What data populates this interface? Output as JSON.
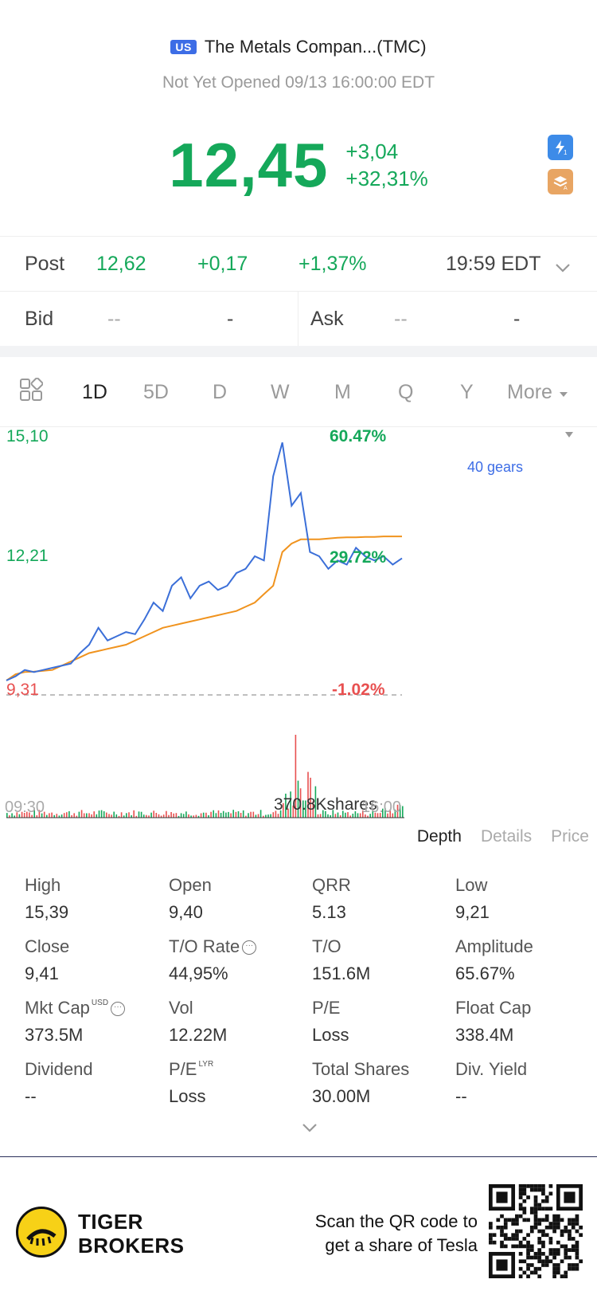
{
  "header": {
    "flag": "US",
    "title": "The Metals Compan...(TMC)",
    "status": "Not Yet Opened 09/13 16:00:00 EDT",
    "price": "12,45",
    "change": "+3,04",
    "change_pct": "+32,31%",
    "colors": {
      "up": "#15a85a",
      "down": "#e85050",
      "accent": "#3d6de6"
    },
    "icons": [
      "lightning-badge-icon",
      "stack-badge-icon"
    ]
  },
  "post": {
    "label": "Post",
    "price": "12,62",
    "change": "+0,17",
    "change_pct": "+1,37%",
    "time": "19:59 EDT"
  },
  "bid_ask": {
    "bid_label": "Bid",
    "bid_price": "--",
    "bid_size": "-",
    "ask_label": "Ask",
    "ask_price": "--",
    "ask_size": "-"
  },
  "tabs": {
    "items": [
      "1D",
      "5D",
      "D",
      "W",
      "M",
      "Q",
      "Y"
    ],
    "more": "More",
    "active": "1D"
  },
  "chart": {
    "y_high": "15,10",
    "y_mid": "12,21",
    "y_low": "9,31",
    "pct_high": "60.47%",
    "pct_mid": "29.72%",
    "pct_low": "-1.02%",
    "indicator": "40 gears",
    "volume_label": "370.8Kshares",
    "x_start": "09:30",
    "x_end": "16:00"
  },
  "chart_data": {
    "type": "line",
    "title": "",
    "xlabel": "",
    "ylabel": "",
    "xlim": [
      "09:30",
      "16:00"
    ],
    "ylim": [
      9.31,
      15.1
    ],
    "reference_line": 9.41,
    "series": [
      {
        "color": "#3b6fd8",
        "values": [
          9.35,
          9.45,
          9.6,
          9.55,
          9.6,
          9.65,
          9.7,
          9.75,
          10.0,
          10.2,
          10.6,
          10.3,
          10.4,
          10.5,
          10.45,
          10.8,
          11.2,
          11.0,
          11.6,
          11.8,
          11.3,
          11.6,
          11.7,
          11.5,
          11.6,
          11.9,
          12.0,
          12.3,
          12.2,
          14.2,
          15.0,
          13.5,
          13.8,
          12.4,
          12.3,
          12.0,
          12.2,
          12.1,
          12.5,
          12.3,
          12.2,
          12.3,
          12.1,
          12.25
        ]
      },
      {
        "color": "#f0931e",
        "values": [
          9.35,
          9.5,
          9.55,
          9.56,
          9.58,
          9.6,
          9.7,
          9.8,
          9.9,
          10.0,
          10.05,
          10.1,
          10.15,
          10.2,
          10.3,
          10.4,
          10.5,
          10.6,
          10.65,
          10.7,
          10.75,
          10.8,
          10.85,
          10.9,
          10.95,
          11.0,
          11.1,
          11.2,
          11.4,
          11.6,
          12.4,
          12.6,
          12.7,
          12.7,
          12.7,
          12.72,
          12.74,
          12.75,
          12.75,
          12.76,
          12.76,
          12.77,
          12.77,
          12.77
        ]
      }
    ],
    "volume_max_label": "370.8Kshares"
  },
  "sub_tabs": [
    "Depth",
    "Details",
    "Price"
  ],
  "stats": [
    {
      "label": "High",
      "value": "15,39"
    },
    {
      "label": "Open",
      "value": "9,40"
    },
    {
      "label": "QRR",
      "value": "5.13"
    },
    {
      "label": "Low",
      "value": "9,21"
    },
    {
      "label": "Close",
      "value": "9,41"
    },
    {
      "label": "T/O Rate",
      "value": "44,95%"
    },
    {
      "label": "T/O",
      "value": "151.6M"
    },
    {
      "label": "Amplitude",
      "value": "65.67%"
    },
    {
      "label": "Mkt Cap",
      "sup": "USD",
      "value": "373.5M"
    },
    {
      "label": "Vol",
      "value": "12.22M"
    },
    {
      "label": "P/E",
      "value": "Loss"
    },
    {
      "label": "Float Cap",
      "value": "338.4M"
    },
    {
      "label": "Dividend",
      "value": "--"
    },
    {
      "label": "P/E",
      "sup": "LYR",
      "value": "Loss"
    },
    {
      "label": "Total Shares",
      "value": "30.00M"
    },
    {
      "label": "Div. Yield",
      "value": "--"
    }
  ],
  "footer": {
    "brand_line1": "TIGER",
    "brand_line2": "BROKERS",
    "scan_line1": "Scan the QR code to",
    "scan_line2": "get a share of Tesla"
  }
}
